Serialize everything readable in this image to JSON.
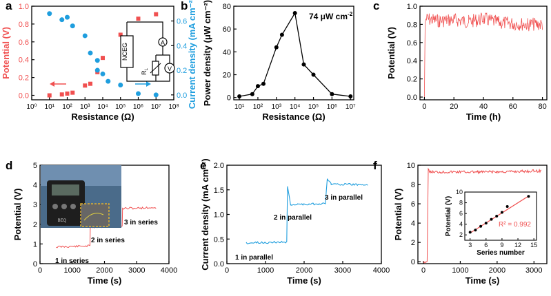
{
  "panel_labels": [
    "a",
    "b",
    "c",
    "d",
    "e",
    "f"
  ],
  "colors": {
    "red": "#f05050",
    "blue": "#1f9ede",
    "black": "#000000",
    "gold": "#e0b030"
  },
  "chart_data": [
    {
      "panel": "a",
      "type": "scatter",
      "xlabel": "Resistance (Ω)",
      "ylabel": "Potential (V)",
      "ylabel2": "Current density (mA cm⁻²)",
      "x_scale": "log",
      "xlim": [
        1,
        100000000
      ],
      "ylim": [
        -0.05,
        1.0
      ],
      "y2lim": [
        -0.04,
        0.72
      ],
      "x_ticks": [
        "10⁰",
        "10¹",
        "10²",
        "10³",
        "10⁴",
        "10⁵",
        "10⁶",
        "10⁷",
        "10⁸"
      ],
      "y_ticks": [
        "0.0",
        "0.2",
        "0.4",
        "0.6",
        "0.8",
        "1.0"
      ],
      "y2_ticks": [
        "0.0",
        "0.2",
        "0.4",
        "0.6"
      ],
      "series": [
        {
          "color": "#f05050",
          "marker": "square",
          "axis": "left",
          "x": [
            10,
            50,
            100,
            200,
            1000,
            2000,
            5000,
            10000,
            100000,
            1000000,
            10000000
          ],
          "y": [
            0.0,
            0.01,
            0.02,
            0.03,
            0.11,
            0.13,
            0.26,
            0.42,
            0.68,
            0.86,
            0.91
          ]
        },
        {
          "color": "#1f9ede",
          "marker": "circle",
          "axis": "right",
          "x": [
            10,
            50,
            100,
            200,
            1000,
            2000,
            5000,
            5000,
            10000,
            20000,
            100000,
            1000000,
            10000000
          ],
          "y": [
            0.66,
            0.61,
            0.63,
            0.56,
            0.48,
            0.34,
            0.28,
            0.2,
            0.17,
            0.11,
            0.08,
            0.01,
            0.0
          ]
        }
      ],
      "inset_labels": {
        "cell": "NCEG",
        "ammeter": "A",
        "voltmeter": "V",
        "load": "R",
        "load_sub": "L"
      }
    },
    {
      "panel": "b",
      "type": "line",
      "xlabel": "Resistance (Ω)",
      "ylabel": "Power density (μW cm⁻²)",
      "annotation": "74 μW cm",
      "annotation_sup": "-2",
      "x_scale": "log",
      "xlim": [
        5,
        15000000
      ],
      "ylim": [
        -2,
        80
      ],
      "x_ticks": [
        "10¹",
        "10²",
        "10³",
        "10⁴",
        "10⁵",
        "10⁶",
        "10⁷"
      ],
      "y_ticks": [
        "0",
        "20",
        "40",
        "60",
        "80"
      ],
      "series": [
        {
          "color": "#000000",
          "x": [
            10,
            50,
            100,
            200,
            1000,
            2000,
            10000,
            30000,
            100000,
            1000000,
            10000000
          ],
          "y": [
            1,
            3,
            10,
            12,
            44,
            55,
            74,
            29,
            20,
            3,
            1
          ]
        }
      ]
    },
    {
      "panel": "c",
      "type": "line",
      "xlabel": "Time (h)",
      "ylabel": "Potential (V)",
      "xlim": [
        -3,
        83
      ],
      "ylim": [
        -0.03,
        1.0
      ],
      "x_ticks": [
        "0",
        "20",
        "40",
        "60",
        "80"
      ],
      "y_ticks": [
        "0.0",
        "0.2",
        "0.4",
        "0.6",
        "0.8",
        "1.0"
      ],
      "series": [
        {
          "color": "#f05050",
          "x": [
            0,
            0.5,
            1,
            10,
            20,
            30,
            40,
            50,
            60,
            70,
            80
          ],
          "y": [
            0.0,
            0.82,
            0.86,
            0.84,
            0.85,
            0.83,
            0.86,
            0.82,
            0.81,
            0.8,
            0.8
          ]
        }
      ]
    },
    {
      "panel": "d",
      "type": "line",
      "xlabel": "Time (s)",
      "ylabel": "Potential (V)",
      "xlim": [
        0,
        4000
      ],
      "ylim": [
        0,
        5
      ],
      "x_ticks": [
        "0",
        "1000",
        "2000",
        "3000",
        "4000"
      ],
      "y_ticks": [
        "0",
        "1",
        "2",
        "3",
        "4",
        "5"
      ],
      "annotations": [
        "1 in series",
        "2 in series",
        "3 in series"
      ],
      "inset_photo_text": "BEQ",
      "series": [
        {
          "color": "#f05050",
          "x": [
            500,
            1550,
            1560,
            2550,
            2560,
            3600
          ],
          "y": [
            0.85,
            0.9,
            1.85,
            1.9,
            2.8,
            2.85
          ]
        }
      ]
    },
    {
      "panel": "e",
      "type": "line",
      "xlabel": "Time (s)",
      "ylabel": "Current density (mA cm⁻²)",
      "xlim": [
        0,
        4000
      ],
      "ylim": [
        0,
        2.0
      ],
      "x_ticks": [
        "0",
        "1000",
        "2000",
        "3000",
        "4000"
      ],
      "y_ticks": [
        "0.0",
        "0.5",
        "1.0",
        "1.5",
        "2.0"
      ],
      "annotations": [
        "1 in parallel",
        "2 in parallel",
        "3 in parallel"
      ],
      "series": [
        {
          "color": "#1f9ede",
          "x": [
            500,
            1550,
            1570,
            1650,
            2550,
            2600,
            2700,
            3650
          ],
          "y": [
            0.42,
            0.44,
            1.55,
            1.2,
            1.22,
            1.72,
            1.62,
            1.6
          ]
        }
      ]
    },
    {
      "panel": "f",
      "type": "line",
      "xlabel": "Time (s)",
      "ylabel": "Potential (V)",
      "xlim": [
        -150,
        3350
      ],
      "ylim": [
        -0.2,
        10
      ],
      "x_ticks": [
        "0",
        "1000",
        "2000",
        "3000"
      ],
      "y_ticks": [
        "0",
        "2",
        "4",
        "6",
        "8",
        "10"
      ],
      "series": [
        {
          "color": "#f05050",
          "x": [
            0,
            100,
            130,
            200,
            1000,
            2000,
            3000,
            3200
          ],
          "y": [
            0.0,
            0.0,
            9.5,
            9.3,
            9.3,
            9.3,
            9.4,
            9.4
          ]
        }
      ],
      "inset": {
        "type": "scatter",
        "xlabel": "Series number",
        "ylabel": "Potential (V)",
        "annotation": "R² = 0.992",
        "xlim": [
          2,
          15.5
        ],
        "ylim": [
          1,
          10
        ],
        "x_ticks": [
          "3",
          "6",
          "9",
          "12",
          "15"
        ],
        "y_ticks": [
          "2",
          "4",
          "6",
          "8",
          "10"
        ],
        "x": [
          3,
          4,
          5,
          6,
          7,
          8,
          9,
          10,
          14
        ],
        "y": [
          2.5,
          2.9,
          3.6,
          4.2,
          4.9,
          5.5,
          6.2,
          7.3,
          9.2
        ],
        "fit": {
          "x": [
            3,
            14
          ],
          "y": [
            2.35,
            9.25
          ]
        }
      }
    }
  ]
}
